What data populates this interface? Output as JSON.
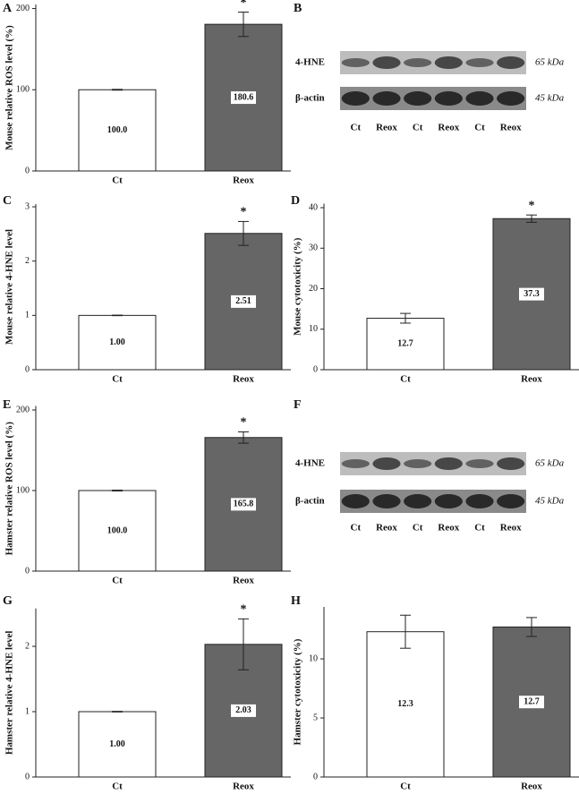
{
  "chart_data": [
    {
      "panel": "A",
      "type": "bar",
      "y_label": "Mouse relative ROS level (%)",
      "categories": [
        "Ct",
        "Reox"
      ],
      "values": [
        100,
        180.6
      ],
      "value_labels": [
        "100.0",
        "180.6"
      ],
      "errors": [
        0.5,
        15
      ],
      "significance": [
        null,
        "*"
      ],
      "colors": [
        "#ffffff",
        "#666666"
      ],
      "ylim": [
        0,
        205
      ],
      "yticks": [
        0,
        100,
        200
      ]
    },
    {
      "panel": "C",
      "type": "bar",
      "y_label": "Mouse relative 4-HNE level",
      "categories": [
        "Ct",
        "Reox"
      ],
      "values": [
        1,
        2.51
      ],
      "value_labels": [
        "1.00",
        "2.51"
      ],
      "errors": [
        0.005,
        0.22
      ],
      "significance": [
        null,
        "*"
      ],
      "colors": [
        "#ffffff",
        "#666666"
      ],
      "ylim": [
        0,
        3.05
      ],
      "yticks": [
        0,
        1,
        2,
        3
      ]
    },
    {
      "panel": "D",
      "type": "bar",
      "y_label": "Mouse cytotoxicity (%)",
      "categories": [
        "Ct",
        "Reox"
      ],
      "values": [
        12.7,
        37.3
      ],
      "value_labels": [
        "12.7",
        "37.3"
      ],
      "errors": [
        1.2,
        0.9
      ],
      "significance": [
        null,
        "*"
      ],
      "colors": [
        "#ffffff",
        "#666666"
      ],
      "ylim": [
        0,
        41
      ],
      "yticks": [
        0,
        10,
        20,
        30,
        40
      ]
    },
    {
      "panel": "E",
      "type": "bar",
      "y_label": "Hamster relative ROS level (%)",
      "categories": [
        "Ct",
        "Reox"
      ],
      "values": [
        100,
        165.8
      ],
      "value_labels": [
        "100.0",
        "165.8"
      ],
      "errors": [
        0.5,
        7
      ],
      "significance": [
        null,
        "*"
      ],
      "colors": [
        "#ffffff",
        "#666666"
      ],
      "ylim": [
        0,
        205
      ],
      "yticks": [
        0,
        100,
        200
      ]
    },
    {
      "panel": "G",
      "type": "bar",
      "y_label": "Hamster relative 4-HNE level",
      "categories": [
        "Ct",
        "Reox"
      ],
      "values": [
        1,
        2.03
      ],
      "value_labels": [
        "1.00",
        "2.03"
      ],
      "errors": [
        0.005,
        0.39
      ],
      "significance": [
        null,
        "*"
      ],
      "colors": [
        "#ffffff",
        "#666666"
      ],
      "ylim": [
        0,
        2.58
      ],
      "yticks": [
        0,
        1,
        2
      ]
    },
    {
      "panel": "H",
      "type": "bar",
      "y_label": "Hamster cytotoxicity (%)",
      "categories": [
        "Ct",
        "Reox"
      ],
      "values": [
        12.3,
        12.7
      ],
      "value_labels": [
        "12.3",
        "12.7"
      ],
      "errors": [
        1.4,
        0.8
      ],
      "significance": [
        null,
        null
      ],
      "colors": [
        "#ffffff",
        "#666666"
      ],
      "ylim": [
        0,
        14.4
      ],
      "yticks": [
        0,
        5,
        10
      ]
    }
  ],
  "blots": [
    {
      "panel": "B",
      "rows": [
        {
          "label": "4-HNE",
          "size": "65 kDa"
        },
        {
          "label": "β-actin",
          "size": "45 kDa"
        }
      ],
      "lanes": [
        "Ct",
        "Reox",
        "Ct",
        "Reox",
        "Ct",
        "Reox"
      ]
    },
    {
      "panel": "F",
      "rows": [
        {
          "label": "4-HNE",
          "size": "65 kDa"
        },
        {
          "label": "β-actin",
          "size": "45 kDa"
        }
      ],
      "lanes": [
        "Ct",
        "Reox",
        "Ct",
        "Reox",
        "Ct",
        "Reox"
      ]
    }
  ]
}
